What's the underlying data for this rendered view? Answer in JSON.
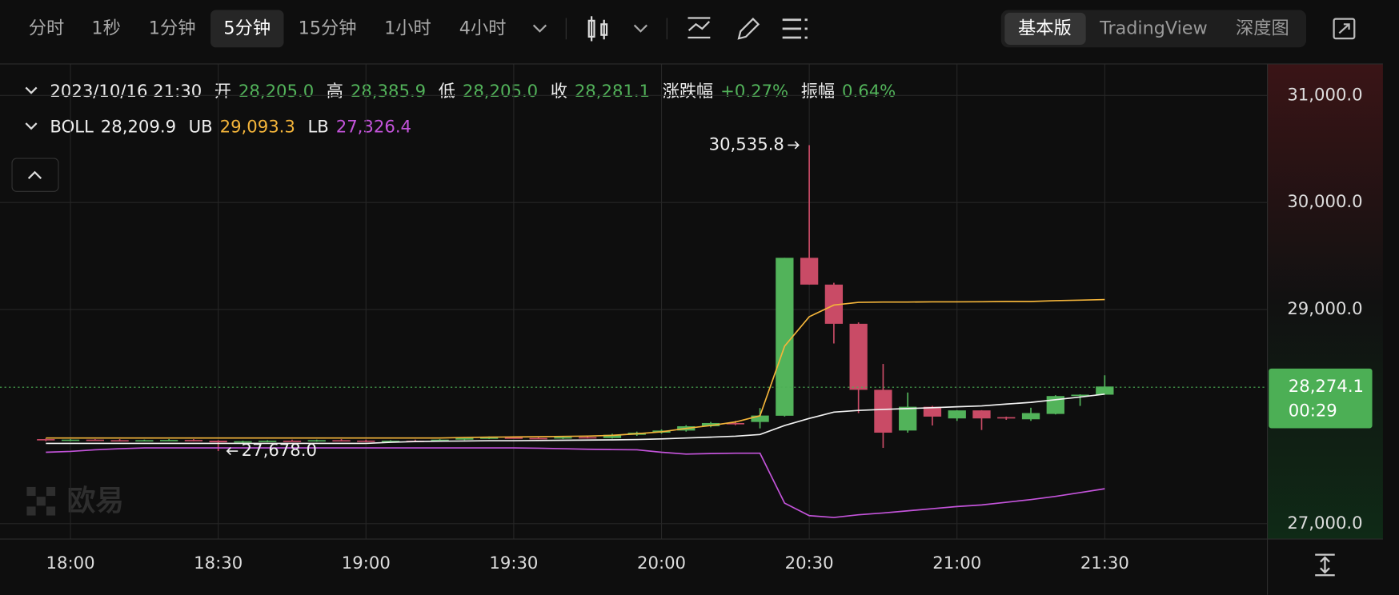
{
  "toolbar": {
    "intervals": [
      "分时",
      "1秒",
      "1分钟",
      "5分钟",
      "15分钟",
      "1小时",
      "4小时"
    ],
    "views": [
      "基本版",
      "TradingView",
      "深度图"
    ]
  },
  "watermark": "欧易",
  "header": {
    "time": "2023/10/16 21:30",
    "fields": [
      {
        "label": "开",
        "value": "28,205.0"
      },
      {
        "label": "高",
        "value": "28,385.9"
      },
      {
        "label": "低",
        "value": "28,205.0"
      },
      {
        "label": "收",
        "value": "28,281.1"
      },
      {
        "label": "涨跌幅",
        "value": "+0.27%"
      },
      {
        "label": "振幅",
        "value": "0.64%"
      }
    ]
  },
  "chart_data": {
    "type": "candlestick",
    "categories": [
      "17:55",
      "18:00",
      "18:05",
      "18:10",
      "18:15",
      "18:20",
      "18:25",
      "18:30",
      "18:35",
      "18:40",
      "18:45",
      "18:50",
      "18:55",
      "19:00",
      "19:05",
      "19:10",
      "19:15",
      "19:20",
      "19:25",
      "19:30",
      "19:35",
      "19:40",
      "19:45",
      "19:50",
      "19:55",
      "20:00",
      "20:05",
      "20:10",
      "20:15",
      "20:20",
      "20:25",
      "20:30",
      "20:35",
      "20:40",
      "20:45",
      "20:50",
      "20:55",
      "21:00",
      "21:05",
      "21:10",
      "21:15",
      "21:20",
      "21:25",
      "21:30"
    ],
    "open": [
      27790,
      27780,
      27785,
      27780,
      27778,
      27780,
      27782,
      27775,
      27760,
      27770,
      27775,
      27772,
      27780,
      27776,
      27765,
      27775,
      27770,
      27785,
      27800,
      27805,
      27800,
      27795,
      27808,
      27800,
      27830,
      27850,
      27870,
      27910,
      27940,
      27950,
      28008,
      29483,
      29233,
      28867,
      28250,
      27870,
      28092,
      27983,
      28058,
      27995,
      27975,
      28025,
      28200,
      28205
    ],
    "high": [
      27795,
      27790,
      27790,
      27790,
      27785,
      27790,
      27790,
      27780,
      27775,
      27780,
      27785,
      27785,
      27790,
      27785,
      27780,
      27785,
      27790,
      27800,
      27815,
      27815,
      27810,
      27812,
      27820,
      27840,
      27860,
      27880,
      27920,
      27950,
      27960,
      28080,
      29483,
      30535.8,
      29250,
      28880,
      28492,
      28225,
      28100,
      28060,
      28060,
      28000,
      28083,
      28200,
      28208,
      28385.9
    ],
    "low": [
      27770,
      27770,
      27775,
      27770,
      27770,
      27775,
      27770,
      27678,
      27750,
      27760,
      27765,
      27765,
      27770,
      27760,
      27760,
      27765,
      27765,
      27780,
      27790,
      27795,
      27790,
      27790,
      27795,
      27795,
      27820,
      27840,
      27860,
      27900,
      27920,
      27890,
      28000,
      29233,
      28683,
      28033,
      27708,
      27850,
      27917,
      27960,
      27875,
      27970,
      27960,
      28020,
      28100,
      28205
    ],
    "close": [
      27780,
      27785,
      27780,
      27778,
      27780,
      27782,
      27775,
      27760,
      27770,
      27775,
      27772,
      27780,
      27776,
      27765,
      27775,
      27770,
      27785,
      27800,
      27805,
      27800,
      27795,
      27808,
      27800,
      27830,
      27850,
      27870,
      27910,
      27940,
      27930,
      28010,
      29483,
      29233,
      28867,
      28250,
      27850,
      28092,
      28000,
      28058,
      27983,
      27983,
      28033,
      28192,
      28205,
      28281.1
    ],
    "up_color": "#52b35a",
    "down_color": "#c94b66",
    "series": [
      {
        "name": "BOLL",
        "color": "#f2f2f2",
        "current_label": "28,209.9",
        "values": [
          27750,
          27750,
          27750,
          27750,
          27750,
          27750,
          27750,
          27750,
          27750,
          27750,
          27750,
          27750,
          27750,
          27750,
          27760,
          27767,
          27770,
          27772,
          27775,
          27775,
          27777,
          27779,
          27781,
          27783,
          27786,
          27792,
          27800,
          27808,
          27817,
          27833,
          27917,
          27983,
          28042,
          28058,
          28067,
          28075,
          28083,
          28092,
          28100,
          28117,
          28133,
          28158,
          28183,
          28209.9
        ]
      },
      {
        "name": "UB",
        "color": "#f3b43a",
        "current_label": "29,093.3",
        "values": [
          27800,
          27800,
          27800,
          27800,
          27800,
          27800,
          27800,
          27800,
          27800,
          27800,
          27800,
          27800,
          27800,
          27800,
          27800,
          27800,
          27800,
          27805,
          27808,
          27810,
          27812,
          27815,
          27818,
          27825,
          27840,
          27858,
          27890,
          27917,
          27950,
          28008,
          28658,
          28933,
          29042,
          29067,
          29070,
          29070,
          29072,
          29072,
          29073,
          29075,
          29075,
          29083,
          29088,
          29093.3
        ]
      },
      {
        "name": "LB",
        "color": "#c454db",
        "current_label": "27,326.4",
        "values": [
          27667,
          27675,
          27690,
          27700,
          27708,
          27708,
          27708,
          27708,
          27708,
          27708,
          27708,
          27708,
          27708,
          27708,
          27708,
          27708,
          27708,
          27708,
          27708,
          27708,
          27705,
          27700,
          27695,
          27692,
          27690,
          27667,
          27650,
          27655,
          27658,
          27658,
          27192,
          27075,
          27058,
          27083,
          27100,
          27120,
          27140,
          27160,
          27175,
          27200,
          27225,
          27255,
          27290,
          27326.4
        ]
      }
    ],
    "ylim": [
      26860,
      31290
    ],
    "yticks": [
      {
        "value": 27000,
        "label": "27,000.0"
      },
      {
        "value": 29000,
        "label": "29,000.0"
      },
      {
        "value": 30000,
        "label": "30,000.0"
      },
      {
        "value": 31000,
        "label": "31,000.0"
      }
    ],
    "xticks": [
      "18:00",
      "18:30",
      "19:00",
      "19:30",
      "20:00",
      "20:30",
      "21:00",
      "21:30"
    ],
    "grid": true,
    "last_price": {
      "value": 28274.1,
      "label": "28,274.1",
      "countdown": "00:29",
      "color": "#4caf55"
    },
    "annotations": [
      {
        "text": "30,535.8",
        "value": 30535.8,
        "x": "20:30",
        "side": "left"
      },
      {
        "text": "27,678.0",
        "value": 27678,
        "x": "18:30",
        "side": "right"
      }
    ]
  }
}
